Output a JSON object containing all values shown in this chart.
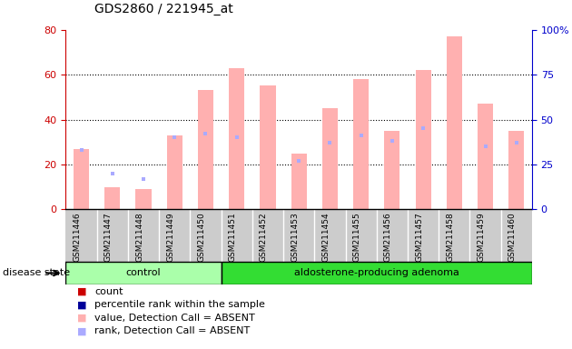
{
  "title": "GDS2860 / 221945_at",
  "samples": [
    "GSM211446",
    "GSM211447",
    "GSM211448",
    "GSM211449",
    "GSM211450",
    "GSM211451",
    "GSM211452",
    "GSM211453",
    "GSM211454",
    "GSM211455",
    "GSM211456",
    "GSM211457",
    "GSM211458",
    "GSM211459",
    "GSM211460"
  ],
  "pink_bars": [
    27,
    10,
    9,
    33,
    53,
    63,
    55,
    25,
    45,
    58,
    35,
    62,
    77,
    47,
    35
  ],
  "blue_dots": [
    33,
    20,
    17,
    40,
    42,
    40,
    null,
    27,
    37,
    41,
    38,
    45,
    null,
    35,
    37
  ],
  "left_ylim": [
    0,
    80
  ],
  "right_ylim": [
    0,
    100
  ],
  "left_yticks": [
    0,
    20,
    40,
    60,
    80
  ],
  "right_yticks": [
    0,
    25,
    50,
    75,
    100
  ],
  "right_yticklabels": [
    "0",
    "25",
    "50",
    "75",
    "100%"
  ],
  "left_ytick_color": "#cc0000",
  "right_ytick_color": "#0000cc",
  "pink_bar_color": "#ffb0b0",
  "blue_dot_color": "#aaaaff",
  "control_samples": 5,
  "control_label": "control",
  "adenoma_label": "aldosterone-producing adenoma",
  "disease_state_label": "disease state",
  "control_color": "#aaffaa",
  "adenoma_color": "#33dd33",
  "bg_color": "#ffffff",
  "plot_bg": "#ffffff",
  "xticklabel_bg": "#cccccc",
  "legend_items": [
    {
      "label": "count",
      "color": "#cc0000"
    },
    {
      "label": "percentile rank within the sample",
      "color": "#000099"
    },
    {
      "label": "value, Detection Call = ABSENT",
      "color": "#ffb0b0"
    },
    {
      "label": "rank, Detection Call = ABSENT",
      "color": "#aaaaff"
    }
  ]
}
